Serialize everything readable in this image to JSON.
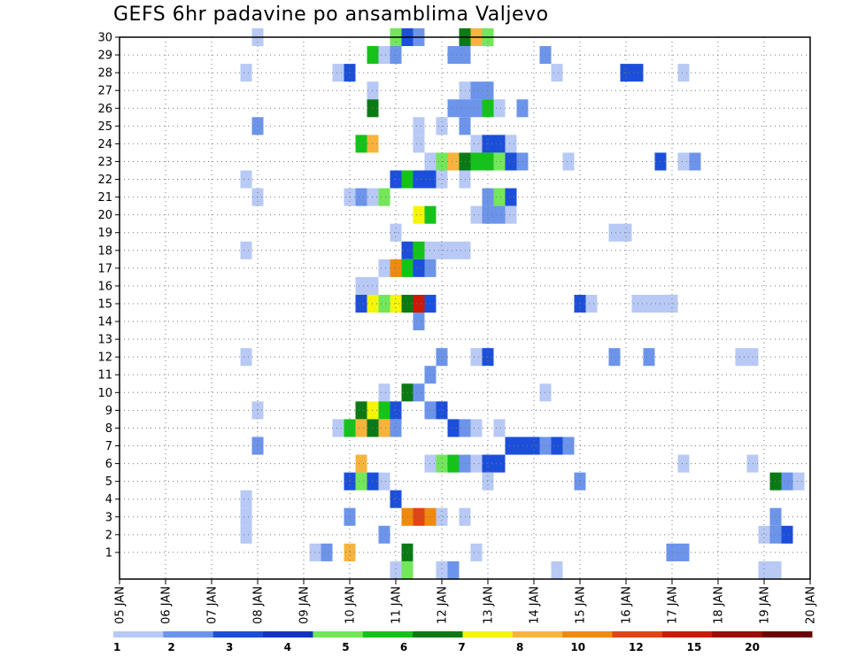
{
  "chart_data": {
    "type": "heatmap",
    "title": "GEFS 6hr padavine po ansamblima Valjevo",
    "x_tick_labels": [
      "05 JAN",
      "06 JAN",
      "07 JAN",
      "08 JAN",
      "09 JAN",
      "10 JAN",
      "11 JAN",
      "12 JAN",
      "13 JAN",
      "14 JAN",
      "15 JAN",
      "16 JAN",
      "17 JAN",
      "18 JAN",
      "19 JAN",
      "20 JAN"
    ],
    "y_tick_labels": [
      "1",
      "2",
      "3",
      "4",
      "5",
      "6",
      "7",
      "8",
      "9",
      "10",
      "11",
      "12",
      "13",
      "14",
      "15",
      "16",
      "17",
      "18",
      "19",
      "20",
      "21",
      "22",
      "23",
      "24",
      "25",
      "26",
      "27",
      "28",
      "29",
      "30"
    ],
    "x_range_days": [
      5,
      20
    ],
    "y_range": [
      0,
      30
    ],
    "grid": true,
    "colorbar": {
      "labels": [
        "1",
        "2",
        "3",
        "4",
        "5",
        "6",
        "7",
        "8",
        "10",
        "12",
        "15",
        "20"
      ],
      "colors": [
        "#b7c9f4",
        "#6c94ea",
        "#1c4fd9",
        "#1334c2",
        "#73e65a",
        "#14c31a",
        "#0b7a14",
        "#f5f50b",
        "#f6b43c",
        "#ef8a0f",
        "#e14515",
        "#cb1a0a",
        "#9d0b0b",
        "#6b0505"
      ]
    },
    "cells": [
      {
        "day": 8.0,
        "member": 30,
        "level": 1
      },
      {
        "day": 11.0,
        "member": 30,
        "level": 5
      },
      {
        "day": 11.25,
        "member": 30,
        "level": 3
      },
      {
        "day": 11.5,
        "member": 30,
        "level": 2
      },
      {
        "day": 12.5,
        "member": 30,
        "level": 7
      },
      {
        "day": 12.75,
        "member": 30,
        "level": 9
      },
      {
        "day": 13.0,
        "member": 30,
        "level": 5
      },
      {
        "day": 10.5,
        "member": 29,
        "level": 6
      },
      {
        "day": 10.75,
        "member": 29,
        "level": 1
      },
      {
        "day": 11.0,
        "member": 29,
        "level": 2
      },
      {
        "day": 12.25,
        "member": 29,
        "level": 2
      },
      {
        "day": 12.5,
        "member": 29,
        "level": 2
      },
      {
        "day": 14.25,
        "member": 29,
        "level": 2
      },
      {
        "day": 7.75,
        "member": 28,
        "level": 1
      },
      {
        "day": 9.75,
        "member": 28,
        "level": 1
      },
      {
        "day": 10.0,
        "member": 28,
        "level": 3
      },
      {
        "day": 14.5,
        "member": 28,
        "level": 1
      },
      {
        "day": 16.0,
        "member": 28,
        "level": 3
      },
      {
        "day": 16.25,
        "member": 28,
        "level": 3
      },
      {
        "day": 17.25,
        "member": 28,
        "level": 1
      },
      {
        "day": 10.5,
        "member": 27,
        "level": 1
      },
      {
        "day": 12.5,
        "member": 27,
        "level": 1
      },
      {
        "day": 12.75,
        "member": 27,
        "level": 2
      },
      {
        "day": 13.0,
        "member": 27,
        "level": 2
      },
      {
        "day": 10.5,
        "member": 26,
        "level": 7
      },
      {
        "day": 12.25,
        "member": 26,
        "level": 2
      },
      {
        "day": 12.5,
        "member": 26,
        "level": 2
      },
      {
        "day": 12.75,
        "member": 26,
        "level": 2
      },
      {
        "day": 13.0,
        "member": 26,
        "level": 6
      },
      {
        "day": 13.25,
        "member": 26,
        "level": 1
      },
      {
        "day": 13.75,
        "member": 26,
        "level": 2
      },
      {
        "day": 8.0,
        "member": 25,
        "level": 2
      },
      {
        "day": 11.5,
        "member": 25,
        "level": 1
      },
      {
        "day": 12.0,
        "member": 25,
        "level": 1
      },
      {
        "day": 12.5,
        "member": 25,
        "level": 2
      },
      {
        "day": 10.25,
        "member": 24,
        "level": 6
      },
      {
        "day": 10.5,
        "member": 24,
        "level": 9
      },
      {
        "day": 11.5,
        "member": 24,
        "level": 1
      },
      {
        "day": 12.75,
        "member": 24,
        "level": 1
      },
      {
        "day": 13.0,
        "member": 24,
        "level": 3
      },
      {
        "day": 13.25,
        "member": 24,
        "level": 3
      },
      {
        "day": 13.5,
        "member": 24,
        "level": 1
      },
      {
        "day": 11.75,
        "member": 23,
        "level": 1
      },
      {
        "day": 12.0,
        "member": 23,
        "level": 5
      },
      {
        "day": 12.25,
        "member": 23,
        "level": 9
      },
      {
        "day": 12.5,
        "member": 23,
        "level": 7
      },
      {
        "day": 12.75,
        "member": 23,
        "level": 6
      },
      {
        "day": 13.0,
        "member": 23,
        "level": 6
      },
      {
        "day": 13.25,
        "member": 23,
        "level": 5
      },
      {
        "day": 13.5,
        "member": 23,
        "level": 3
      },
      {
        "day": 13.75,
        "member": 23,
        "level": 2
      },
      {
        "day": 14.75,
        "member": 23,
        "level": 1
      },
      {
        "day": 16.75,
        "member": 23,
        "level": 3
      },
      {
        "day": 17.25,
        "member": 23,
        "level": 1
      },
      {
        "day": 17.5,
        "member": 23,
        "level": 2
      },
      {
        "day": 7.75,
        "member": 22,
        "level": 1
      },
      {
        "day": 11.0,
        "member": 22,
        "level": 3
      },
      {
        "day": 11.25,
        "member": 22,
        "level": 6
      },
      {
        "day": 11.5,
        "member": 22,
        "level": 3
      },
      {
        "day": 11.75,
        "member": 22,
        "level": 3
      },
      {
        "day": 12.0,
        "member": 22,
        "level": 1
      },
      {
        "day": 12.5,
        "member": 22,
        "level": 1
      },
      {
        "day": 8.0,
        "member": 21,
        "level": 1
      },
      {
        "day": 10.0,
        "member": 21,
        "level": 1
      },
      {
        "day": 10.25,
        "member": 21,
        "level": 2
      },
      {
        "day": 10.5,
        "member": 21,
        "level": 1
      },
      {
        "day": 10.75,
        "member": 21,
        "level": 5
      },
      {
        "day": 13.0,
        "member": 21,
        "level": 2
      },
      {
        "day": 13.25,
        "member": 21,
        "level": 5
      },
      {
        "day": 13.5,
        "member": 21,
        "level": 3
      },
      {
        "day": 11.5,
        "member": 20,
        "level": 8
      },
      {
        "day": 11.75,
        "member": 20,
        "level": 6
      },
      {
        "day": 12.75,
        "member": 20,
        "level": 1
      },
      {
        "day": 13.0,
        "member": 20,
        "level": 2
      },
      {
        "day": 13.25,
        "member": 20,
        "level": 2
      },
      {
        "day": 13.5,
        "member": 20,
        "level": 1
      },
      {
        "day": 11.0,
        "member": 19,
        "level": 1
      },
      {
        "day": 15.75,
        "member": 19,
        "level": 1
      },
      {
        "day": 16.0,
        "member": 19,
        "level": 1
      },
      {
        "day": 7.75,
        "member": 18,
        "level": 1
      },
      {
        "day": 11.25,
        "member": 18,
        "level": 3
      },
      {
        "day": 11.5,
        "member": 18,
        "level": 6
      },
      {
        "day": 11.75,
        "member": 18,
        "level": 1
      },
      {
        "day": 12.0,
        "member": 18,
        "level": 1
      },
      {
        "day": 12.25,
        "member": 18,
        "level": 1
      },
      {
        "day": 12.5,
        "member": 18,
        "level": 1
      },
      {
        "day": 10.75,
        "member": 17,
        "level": 1
      },
      {
        "day": 11.0,
        "member": 17,
        "level": 10
      },
      {
        "day": 11.25,
        "member": 17,
        "level": 6
      },
      {
        "day": 11.5,
        "member": 17,
        "level": 3
      },
      {
        "day": 11.75,
        "member": 17,
        "level": 2
      },
      {
        "day": 10.25,
        "member": 16,
        "level": 1
      },
      {
        "day": 10.5,
        "member": 16,
        "level": 1
      },
      {
        "day": 10.25,
        "member": 15,
        "level": 3
      },
      {
        "day": 10.5,
        "member": 15,
        "level": 8
      },
      {
        "day": 10.75,
        "member": 15,
        "level": 5
      },
      {
        "day": 11.0,
        "member": 15,
        "level": 8
      },
      {
        "day": 11.25,
        "member": 15,
        "level": 7
      },
      {
        "day": 11.5,
        "member": 15,
        "level": 12
      },
      {
        "day": 11.75,
        "member": 15,
        "level": 3
      },
      {
        "day": 15.0,
        "member": 15,
        "level": 3
      },
      {
        "day": 15.25,
        "member": 15,
        "level": 1
      },
      {
        "day": 16.25,
        "member": 15,
        "level": 1
      },
      {
        "day": 16.5,
        "member": 15,
        "level": 1
      },
      {
        "day": 16.75,
        "member": 15,
        "level": 1
      },
      {
        "day": 17.0,
        "member": 15,
        "level": 1
      },
      {
        "day": 11.5,
        "member": 14,
        "level": 2
      },
      {
        "day": 7.75,
        "member": 12,
        "level": 1
      },
      {
        "day": 12.0,
        "member": 12,
        "level": 2
      },
      {
        "day": 12.75,
        "member": 12,
        "level": 1
      },
      {
        "day": 13.0,
        "member": 12,
        "level": 3
      },
      {
        "day": 15.75,
        "member": 12,
        "level": 2
      },
      {
        "day": 16.5,
        "member": 12,
        "level": 2
      },
      {
        "day": 18.5,
        "member": 12,
        "level": 1
      },
      {
        "day": 18.75,
        "member": 12,
        "level": 1
      },
      {
        "day": 11.75,
        "member": 11,
        "level": 2
      },
      {
        "day": 10.75,
        "member": 10,
        "level": 1
      },
      {
        "day": 11.25,
        "member": 10,
        "level": 7
      },
      {
        "day": 11.5,
        "member": 10,
        "level": 2
      },
      {
        "day": 14.25,
        "member": 10,
        "level": 1
      },
      {
        "day": 8.0,
        "member": 9,
        "level": 1
      },
      {
        "day": 10.25,
        "member": 9,
        "level": 7
      },
      {
        "day": 10.5,
        "member": 9,
        "level": 8
      },
      {
        "day": 10.75,
        "member": 9,
        "level": 6
      },
      {
        "day": 11.0,
        "member": 9,
        "level": 3
      },
      {
        "day": 11.75,
        "member": 9,
        "level": 2
      },
      {
        "day": 12.0,
        "member": 9,
        "level": 3
      },
      {
        "day": 9.75,
        "member": 8,
        "level": 1
      },
      {
        "day": 10.0,
        "member": 8,
        "level": 6
      },
      {
        "day": 10.25,
        "member": 8,
        "level": 9
      },
      {
        "day": 10.5,
        "member": 8,
        "level": 7
      },
      {
        "day": 10.75,
        "member": 8,
        "level": 9
      },
      {
        "day": 11.0,
        "member": 8,
        "level": 2
      },
      {
        "day": 12.25,
        "member": 8,
        "level": 3
      },
      {
        "day": 12.5,
        "member": 8,
        "level": 2
      },
      {
        "day": 12.75,
        "member": 8,
        "level": 1
      },
      {
        "day": 13.25,
        "member": 8,
        "level": 1
      },
      {
        "day": 8.0,
        "member": 7,
        "level": 2
      },
      {
        "day": 13.5,
        "member": 7,
        "level": 3
      },
      {
        "day": 13.75,
        "member": 7,
        "level": 3
      },
      {
        "day": 14.0,
        "member": 7,
        "level": 3
      },
      {
        "day": 14.25,
        "member": 7,
        "level": 2
      },
      {
        "day": 14.5,
        "member": 7,
        "level": 3
      },
      {
        "day": 14.75,
        "member": 7,
        "level": 2
      },
      {
        "day": 10.25,
        "member": 6,
        "level": 9
      },
      {
        "day": 11.75,
        "member": 6,
        "level": 1
      },
      {
        "day": 12.0,
        "member": 6,
        "level": 5
      },
      {
        "day": 12.25,
        "member": 6,
        "level": 6
      },
      {
        "day": 12.5,
        "member": 6,
        "level": 2
      },
      {
        "day": 12.75,
        "member": 6,
        "level": 1
      },
      {
        "day": 13.0,
        "member": 6,
        "level": 3
      },
      {
        "day": 13.25,
        "member": 6,
        "level": 3
      },
      {
        "day": 17.25,
        "member": 6,
        "level": 1
      },
      {
        "day": 18.75,
        "member": 6,
        "level": 1
      },
      {
        "day": 10.0,
        "member": 5,
        "level": 3
      },
      {
        "day": 10.25,
        "member": 5,
        "level": 5
      },
      {
        "day": 10.5,
        "member": 5,
        "level": 3
      },
      {
        "day": 10.75,
        "member": 5,
        "level": 1
      },
      {
        "day": 13.0,
        "member": 5,
        "level": 1
      },
      {
        "day": 15.0,
        "member": 5,
        "level": 2
      },
      {
        "day": 19.25,
        "member": 5,
        "level": 7
      },
      {
        "day": 19.5,
        "member": 5,
        "level": 2
      },
      {
        "day": 19.75,
        "member": 5,
        "level": 1
      },
      {
        "day": 7.75,
        "member": 4,
        "level": 1
      },
      {
        "day": 11.0,
        "member": 4,
        "level": 3
      },
      {
        "day": 7.75,
        "member": 3,
        "level": 1
      },
      {
        "day": 10.0,
        "member": 3,
        "level": 2
      },
      {
        "day": 11.25,
        "member": 3,
        "level": 10
      },
      {
        "day": 11.5,
        "member": 3,
        "level": 11
      },
      {
        "day": 11.75,
        "member": 3,
        "level": 10
      },
      {
        "day": 12.0,
        "member": 3,
        "level": 1
      },
      {
        "day": 12.5,
        "member": 3,
        "level": 1
      },
      {
        "day": 19.25,
        "member": 3,
        "level": 2
      },
      {
        "day": 7.75,
        "member": 2,
        "level": 1
      },
      {
        "day": 10.75,
        "member": 2,
        "level": 2
      },
      {
        "day": 19.0,
        "member": 2,
        "level": 1
      },
      {
        "day": 19.25,
        "member": 2,
        "level": 2
      },
      {
        "day": 19.5,
        "member": 2,
        "level": 3
      },
      {
        "day": 9.25,
        "member": 1,
        "level": 1
      },
      {
        "day": 9.5,
        "member": 1,
        "level": 2
      },
      {
        "day": 10.0,
        "member": 1,
        "level": 9
      },
      {
        "day": 11.25,
        "member": 1,
        "level": 7
      },
      {
        "day": 12.75,
        "member": 1,
        "level": 1
      },
      {
        "day": 17.0,
        "member": 1,
        "level": 2
      },
      {
        "day": 17.25,
        "member": 1,
        "level": 2
      },
      {
        "day": 11.0,
        "member": 0,
        "level": 1
      },
      {
        "day": 11.25,
        "member": 0,
        "level": 5
      },
      {
        "day": 12.0,
        "member": 0,
        "level": 1
      },
      {
        "day": 12.25,
        "member": 0,
        "level": 2
      },
      {
        "day": 14.5,
        "member": 0,
        "level": 1
      },
      {
        "day": 19.0,
        "member": 0,
        "level": 1
      },
      {
        "day": 19.25,
        "member": 0,
        "level": 1
      }
    ]
  }
}
